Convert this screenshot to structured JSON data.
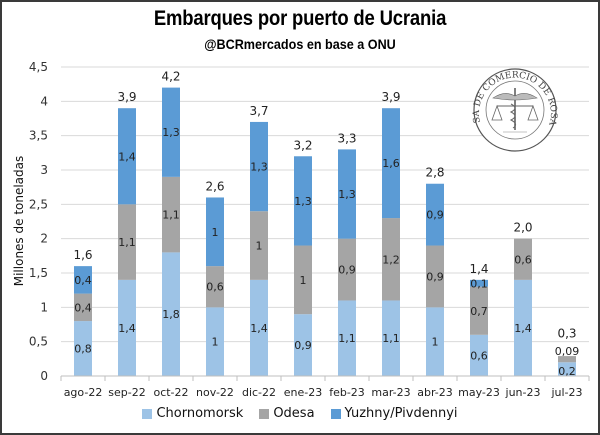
{
  "chart_data": {
    "type": "bar",
    "stacked": true,
    "title": "Embarques por puerto de Ucrania",
    "subtitle": "@BCRmercados en base a ONU",
    "xlabel": "",
    "ylabel": "Millones de toneladas",
    "ylim": [
      0,
      4.5
    ],
    "yticks": [
      "0",
      "0,5",
      "1",
      "1,5",
      "2",
      "2,5",
      "3",
      "3,5",
      "4",
      "4,5"
    ],
    "ytick_values": [
      0,
      0.5,
      1,
      1.5,
      2,
      2.5,
      3,
      3.5,
      4,
      4.5
    ],
    "grid": true,
    "legend_position": "bottom",
    "categories": [
      "ago-22",
      "sep-22",
      "oct-22",
      "nov-22",
      "dic-22",
      "ene-23",
      "feb-23",
      "mar-23",
      "abr-23",
      "may-23",
      "jun-23",
      "jul-23"
    ],
    "series": [
      {
        "name": "Chornomorsk",
        "color": "#9dc3e6",
        "values": [
          0.8,
          1.4,
          1.8,
          1,
          1.4,
          0.9,
          1.1,
          1.1,
          1,
          0.6,
          1.4,
          0.2
        ],
        "labels": [
          "0,8",
          "1,4",
          "1,8",
          "1",
          "1,4",
          "0,9",
          "1,1",
          "1,1",
          "1",
          "0,6",
          "1,4",
          "0,2"
        ]
      },
      {
        "name": "Odesa",
        "color": "#a5a5a5",
        "values": [
          0.4,
          1.1,
          1.1,
          0.6,
          1,
          1,
          0.9,
          1.2,
          0.9,
          0.7,
          0.6,
          0.09
        ],
        "labels": [
          "0,4",
          "1,1",
          "1,1",
          "0,6",
          "1",
          "1",
          "0,9",
          "1,2",
          "0,9",
          "0,7",
          "0,6",
          "0,09"
        ]
      },
      {
        "name": "Yuzhny/Pivdennyi",
        "color": "#5b9bd5",
        "values": [
          0.4,
          1.4,
          1.3,
          1,
          1.3,
          1.3,
          1.3,
          1.6,
          0.9,
          0.1,
          0,
          0
        ],
        "labels": [
          "0,4",
          "1,4",
          "1,3",
          "1",
          "1,3",
          "1,3",
          "1,3",
          "1,6",
          "0,9",
          "0,1",
          "",
          ""
        ]
      }
    ],
    "totals": [
      1.6,
      3.9,
      4.2,
      2.6,
      3.7,
      3.2,
      3.3,
      3.9,
      2.8,
      1.4,
      2.0,
      0.3
    ],
    "total_labels": [
      "1,6",
      "3,9",
      "4,2",
      "2,6",
      "3,7",
      "3,2",
      "3,3",
      "3,9",
      "2,8",
      "1,4",
      "2,0",
      "0,3"
    ]
  },
  "watermark": {
    "text": "BOLSA DE COMERCIO DE ROSARIO",
    "icon": "caduceus-scales-seal-icon"
  },
  "colors": {
    "grid": "#d9d9d9",
    "axis": "#bfbfbf"
  }
}
